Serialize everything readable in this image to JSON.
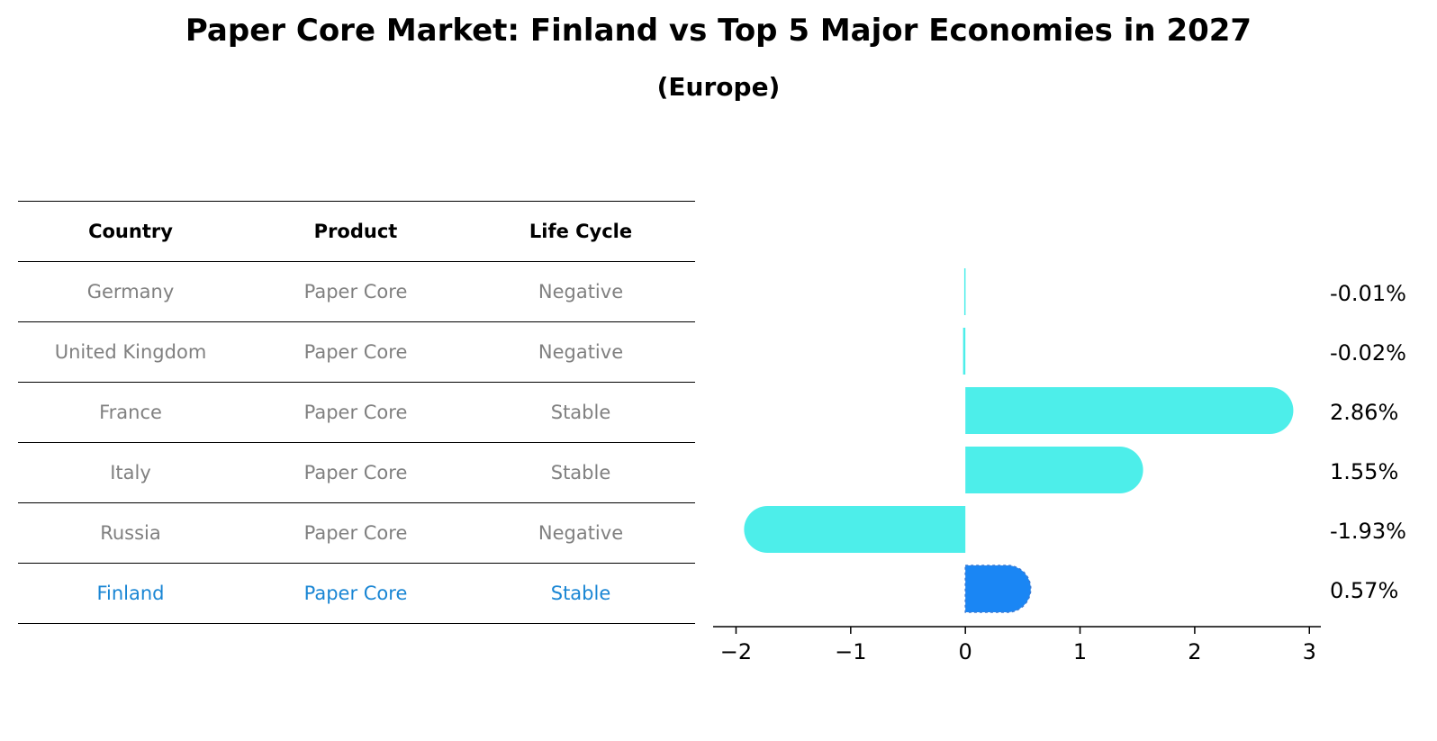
{
  "title": "Paper Core Market: Finland vs Top 5 Major Economies in 2027",
  "subtitle": "(Europe)",
  "table": {
    "headers": [
      "Country",
      "Product",
      "Life Cycle"
    ],
    "rows": [
      [
        "Germany",
        "Paper Core",
        "Negative"
      ],
      [
        "United Kingdom",
        "Paper Core",
        "Negative"
      ],
      [
        "France",
        "Paper Core",
        "Stable"
      ],
      [
        "Italy",
        "Paper Core",
        "Stable"
      ],
      [
        "Russia",
        "Paper Core",
        "Negative"
      ],
      [
        "Finland",
        "Paper Core",
        "Stable"
      ]
    ],
    "highlight_row": 5
  },
  "chart_data": {
    "type": "bar",
    "orientation": "horizontal",
    "categories": [
      "Germany",
      "United Kingdom",
      "France",
      "Italy",
      "Russia",
      "Finland"
    ],
    "values": [
      -0.01,
      -0.02,
      2.86,
      1.55,
      -1.93,
      0.57
    ],
    "value_labels": [
      "-0.01%",
      "-0.02%",
      "2.86%",
      "1.55%",
      "-1.93%",
      "0.57%"
    ],
    "xlim": [
      -2.2,
      3.1
    ],
    "xticks": [
      -2,
      -1,
      0,
      1,
      2,
      3
    ],
    "xtick_labels": [
      "−2",
      "−1",
      "0",
      "1",
      "2",
      "3"
    ],
    "grid": false,
    "colors": {
      "default": "#4deeea",
      "highlight": "#1a86f4"
    },
    "highlight_index": 5
  }
}
